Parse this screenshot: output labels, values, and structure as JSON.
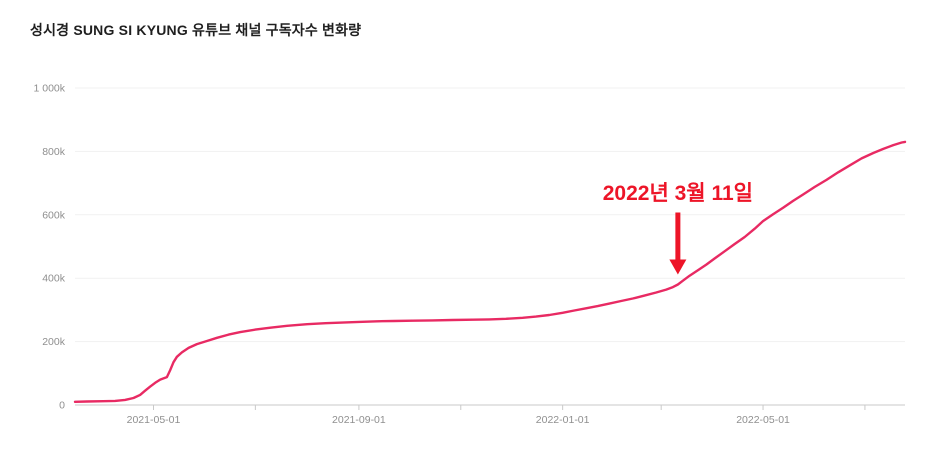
{
  "page": {
    "title": "성시경 SUNG SI KYUNG 유튜브 채널 구독자수 변화량"
  },
  "chart_data": {
    "type": "line",
    "title": "성시경 SUNG SI KYUNG 유튜브 채널 구독자수 변화량",
    "series_name": "구독자수",
    "unit": "subscribers, thousands (k)",
    "x_domain": [
      "2021-03-15",
      "2022-07-25"
    ],
    "y_domain": [
      0,
      1000
    ],
    "grid": "horizontal, faint",
    "legend": "none",
    "y_ticks": [
      {
        "value": 0,
        "label": "0"
      },
      {
        "value": 200,
        "label": "200k"
      },
      {
        "value": 400,
        "label": "400k"
      },
      {
        "value": 600,
        "label": "600k"
      },
      {
        "value": 800,
        "label": "800k"
      },
      {
        "value": 1000,
        "label": "1 000k"
      }
    ],
    "x_ticks_major": [
      {
        "date": "2021-05-01",
        "label": "2021-05-01"
      },
      {
        "date": "2021-09-01",
        "label": "2021-09-01"
      },
      {
        "date": "2022-01-01",
        "label": "2022-01-01"
      },
      {
        "date": "2022-05-01",
        "label": "2022-05-01"
      }
    ],
    "x_ticks_minor": [
      "2021-07-01",
      "2021-11-01",
      "2022-03-01",
      "2022-07-01"
    ],
    "points": [
      [
        "2021-03-15",
        10
      ],
      [
        "2021-03-22",
        11
      ],
      [
        "2021-04-01",
        12
      ],
      [
        "2021-04-08",
        13
      ],
      [
        "2021-04-14",
        16
      ],
      [
        "2021-04-19",
        22
      ],
      [
        "2021-04-23",
        32
      ],
      [
        "2021-04-26",
        45
      ],
      [
        "2021-04-29",
        58
      ],
      [
        "2021-05-02",
        70
      ],
      [
        "2021-05-05",
        80
      ],
      [
        "2021-05-07",
        84
      ],
      [
        "2021-05-09",
        88
      ],
      [
        "2021-05-11",
        110
      ],
      [
        "2021-05-13",
        135
      ],
      [
        "2021-05-15",
        152
      ],
      [
        "2021-05-18",
        166
      ],
      [
        "2021-05-22",
        180
      ],
      [
        "2021-05-27",
        192
      ],
      [
        "2021-06-02",
        202
      ],
      [
        "2021-06-08",
        212
      ],
      [
        "2021-06-15",
        222
      ],
      [
        "2021-06-22",
        230
      ],
      [
        "2021-07-01",
        238
      ],
      [
        "2021-07-10",
        244
      ],
      [
        "2021-07-20",
        250
      ],
      [
        "2021-08-01",
        255
      ],
      [
        "2021-08-12",
        258
      ],
      [
        "2021-08-22",
        260
      ],
      [
        "2021-09-01",
        262
      ],
      [
        "2021-09-12",
        264
      ],
      [
        "2021-09-22",
        265
      ],
      [
        "2021-10-03",
        266
      ],
      [
        "2021-10-15",
        267
      ],
      [
        "2021-10-27",
        268
      ],
      [
        "2021-11-08",
        269
      ],
      [
        "2021-11-18",
        270
      ],
      [
        "2021-11-28",
        272
      ],
      [
        "2021-12-08",
        275
      ],
      [
        "2021-12-16",
        279
      ],
      [
        "2021-12-24",
        284
      ],
      [
        "2022-01-01",
        291
      ],
      [
        "2022-01-08",
        298
      ],
      [
        "2022-01-15",
        305
      ],
      [
        "2022-01-22",
        312
      ],
      [
        "2022-01-29",
        320
      ],
      [
        "2022-02-05",
        328
      ],
      [
        "2022-02-12",
        336
      ],
      [
        "2022-02-19",
        345
      ],
      [
        "2022-02-26",
        355
      ],
      [
        "2022-03-04",
        364
      ],
      [
        "2022-03-08",
        372
      ],
      [
        "2022-03-11",
        380
      ],
      [
        "2022-03-14",
        392
      ],
      [
        "2022-03-18",
        408
      ],
      [
        "2022-03-23",
        425
      ],
      [
        "2022-03-28",
        443
      ],
      [
        "2022-04-02",
        462
      ],
      [
        "2022-04-08",
        485
      ],
      [
        "2022-04-14",
        508
      ],
      [
        "2022-04-20",
        530
      ],
      [
        "2022-04-26",
        556
      ],
      [
        "2022-05-01",
        580
      ],
      [
        "2022-05-07",
        602
      ],
      [
        "2022-05-13",
        622
      ],
      [
        "2022-05-19",
        644
      ],
      [
        "2022-05-25",
        664
      ],
      [
        "2022-06-01",
        688
      ],
      [
        "2022-06-08",
        710
      ],
      [
        "2022-06-15",
        734
      ],
      [
        "2022-06-22",
        756
      ],
      [
        "2022-06-29",
        778
      ],
      [
        "2022-07-06",
        795
      ],
      [
        "2022-07-12",
        808
      ],
      [
        "2022-07-18",
        820
      ],
      [
        "2022-07-23",
        828
      ],
      [
        "2022-07-25",
        830
      ]
    ],
    "annotation": {
      "label": "2022년 3월 11일",
      "date": "2022-03-11",
      "value": 380
    },
    "colors": {
      "line": "#e82a63",
      "annotation": "#ed1528",
      "axis": "#c9c9c9",
      "tick": "#c9c9c9",
      "tick_label": "#8f8f8f",
      "grid": "#f1f1f1",
      "title": "#1f1f1f",
      "background": "#ffffff"
    }
  }
}
